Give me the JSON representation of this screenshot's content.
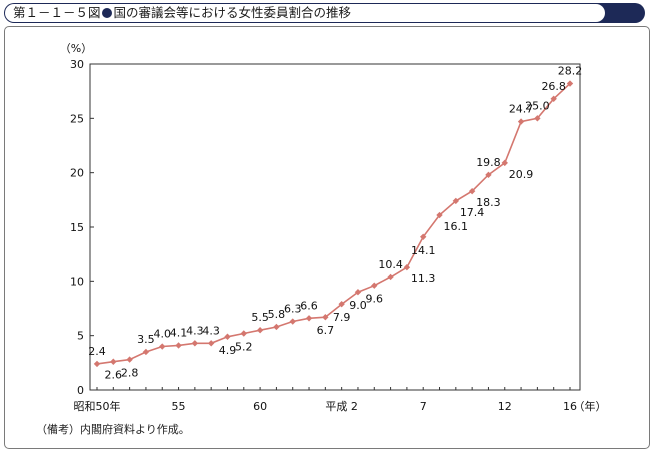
{
  "title": {
    "fig_no": "第１－１－５図",
    "text": "国の審議会等における女性委員割合の推移"
  },
  "note": "（備考）内閣府資料より作成。",
  "chart_data": {
    "type": "line",
    "ylabel": "（%）",
    "xunit": "（年）",
    "ylim": [
      0,
      30
    ],
    "yticks": [
      0,
      5,
      10,
      15,
      20,
      25,
      30
    ],
    "grid": false,
    "line_color": "#d4776f",
    "x_tick_labels": [
      {
        "x": 0,
        "label": "昭和50年"
      },
      {
        "x": 5,
        "label": "55"
      },
      {
        "x": 10,
        "label": "60"
      },
      {
        "x": 15,
        "label": "平成 2"
      },
      {
        "x": 20,
        "label": "7"
      },
      {
        "x": 25,
        "label": "12"
      },
      {
        "x": 29,
        "label": "16"
      }
    ],
    "series": [
      {
        "x": [
          0,
          1,
          2,
          3,
          4,
          5,
          6,
          7,
          8,
          9,
          10,
          11,
          12,
          13,
          14,
          15,
          16,
          17,
          18,
          19,
          20,
          21,
          22,
          23,
          24,
          25,
          26,
          27,
          28,
          29
        ],
        "values": [
          2.4,
          2.6,
          2.8,
          3.5,
          4.0,
          4.1,
          4.3,
          4.3,
          4.9,
          5.2,
          5.5,
          5.8,
          6.3,
          6.6,
          6.7,
          7.9,
          9.0,
          9.6,
          10.4,
          11.3,
          14.1,
          16.1,
          17.4,
          18.3,
          19.8,
          20.9,
          24.7,
          25.0,
          26.8,
          28.2
        ],
        "labels": [
          "2.4",
          "2.6",
          "2.8",
          "3.5",
          "4.0",
          "4.1",
          "4.3",
          "4.3",
          "4.9",
          "5.2",
          "5.5",
          "5.8",
          "6.3",
          "6.6",
          "6.7",
          "7.9",
          "9.0",
          "9.6",
          "10.4",
          "11.3",
          "14.1",
          "16.1",
          "17.4",
          "18.3",
          "19.8",
          "20.9",
          "24.7",
          "25.0",
          "26.8",
          "28.2"
        ]
      }
    ]
  }
}
